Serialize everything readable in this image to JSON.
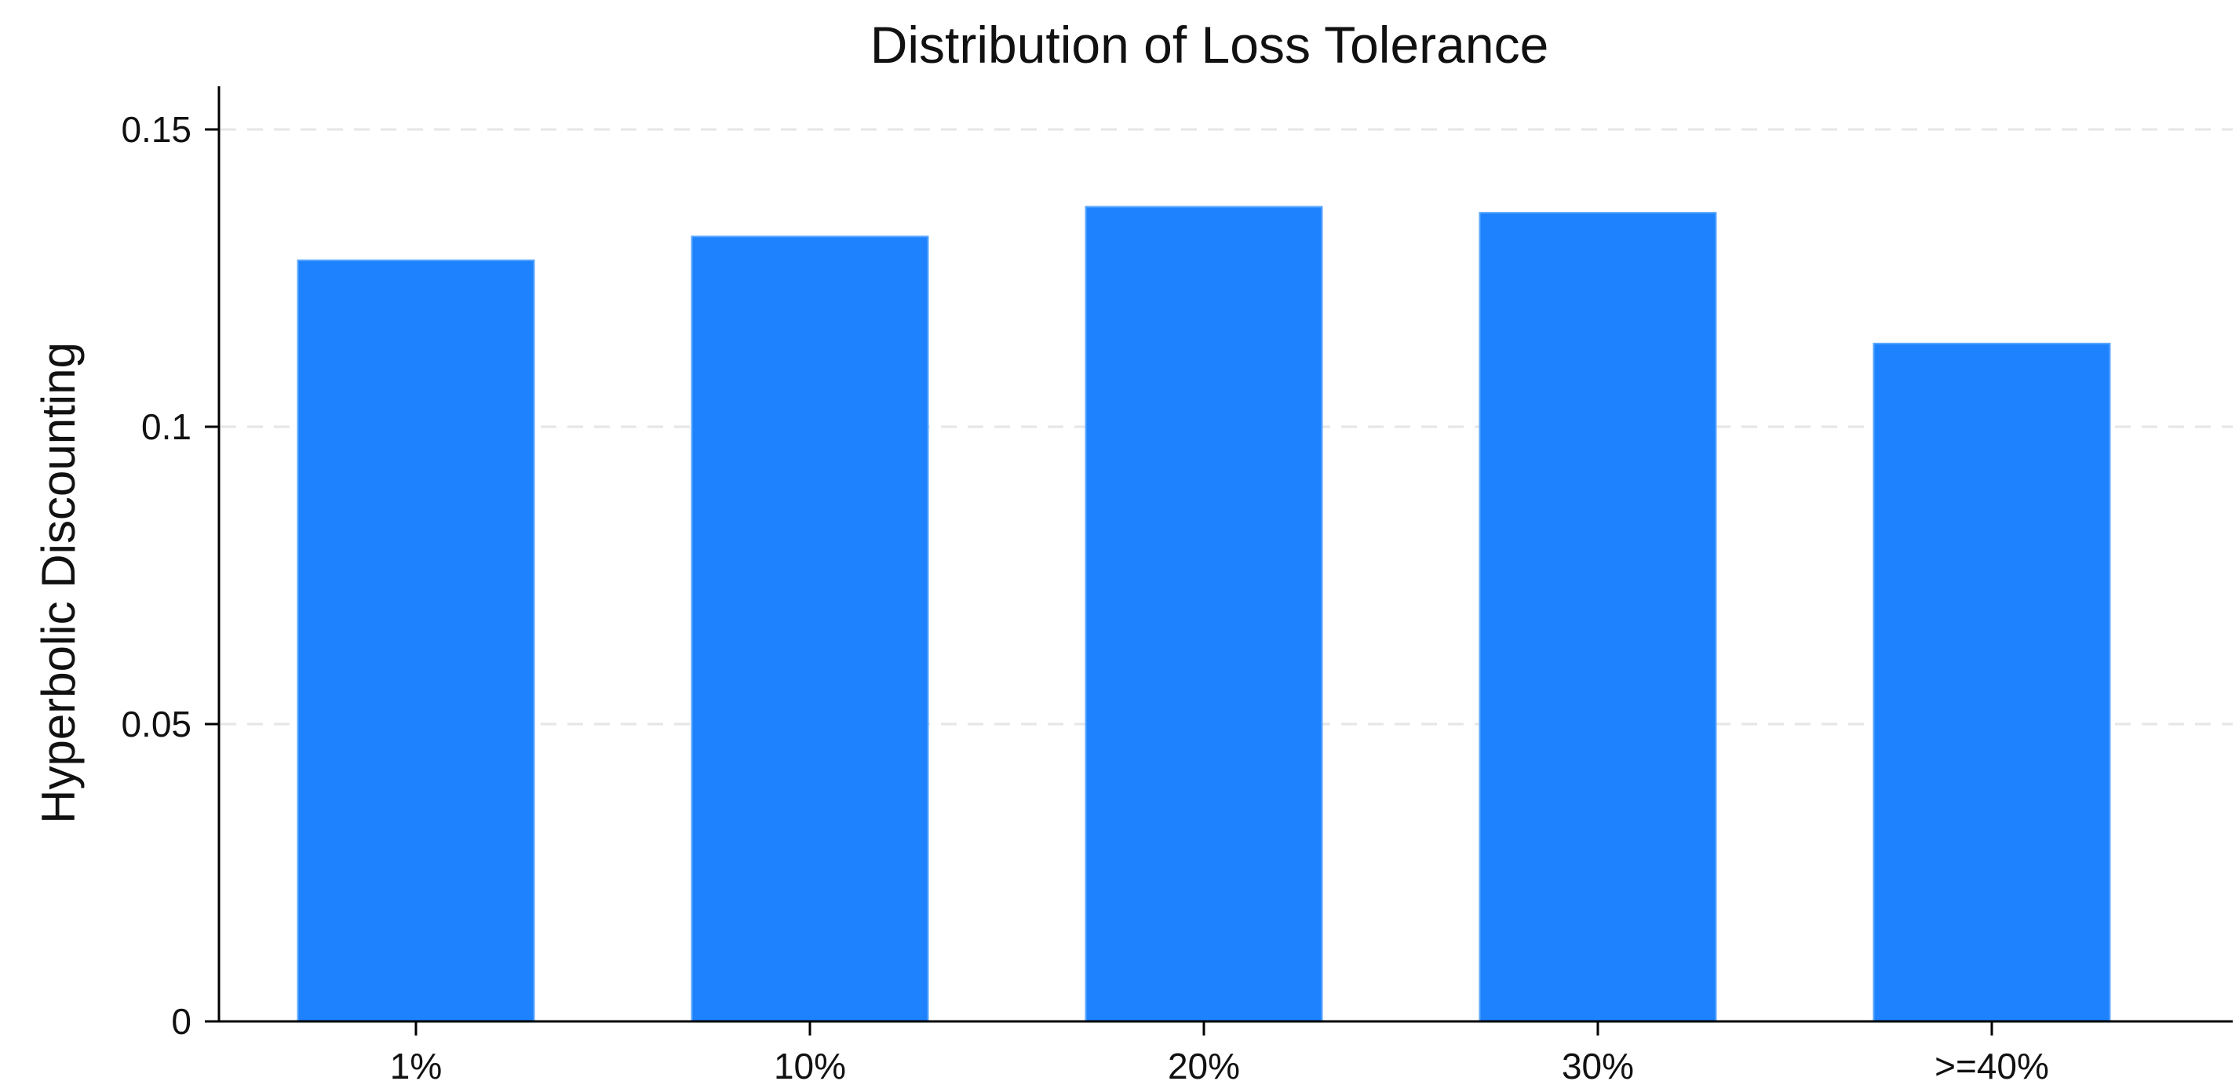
{
  "chart_data": {
    "type": "bar",
    "title": "Distribution of Loss Tolerance",
    "xlabel": "",
    "ylabel": "Hyperbolic Discounting",
    "categories": [
      "1%",
      "10%",
      "20%",
      "30%",
      ">=40%"
    ],
    "values": [
      0.128,
      0.132,
      0.137,
      0.136,
      0.114
    ],
    "ylim": [
      0,
      0.157
    ],
    "yticks": [
      0,
      0.05,
      0.1,
      0.15
    ],
    "ytick_labels": [
      "0",
      "0.05",
      "0.1",
      "0.15"
    ],
    "grid": true,
    "legend": "none",
    "colors": {
      "bar": "#1E82FF",
      "grid": "#E6E6E6",
      "axis": "#000000"
    }
  }
}
